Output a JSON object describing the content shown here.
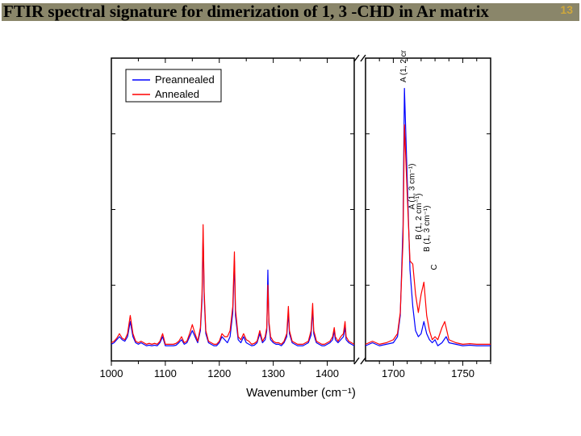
{
  "title_bar": {
    "text": "FTIR spectral signature for dimerization of 1, 3 -CHD in Ar matrix",
    "bg_color": "#8a866a",
    "text_color": "#000000",
    "font_size_pt": 21,
    "font_weight": "bold"
  },
  "page_number": {
    "value": "13",
    "color": "#cfa83c",
    "font_size_pt": 14
  },
  "chart": {
    "type": "line",
    "background_color": "#ffffff",
    "plot_border_color": "#000000",
    "grid": false,
    "x_axis": {
      "label": "Wavenumber (cm⁻¹)",
      "label_fontsize": 15,
      "break": {
        "enabled": true,
        "segments": [
          {
            "domain": [
              1000,
              1450
            ],
            "width_fraction": 0.66
          },
          {
            "domain": [
              1680,
              1770
            ],
            "width_fraction": 0.34
          }
        ]
      },
      "ticks_seg1": [
        1000,
        1100,
        1200,
        1300,
        1400
      ],
      "ticks_seg2": [
        1700,
        1750
      ],
      "tick_fontsize": 13,
      "tick_color": "#000000"
    },
    "y_axis": {
      "label": "",
      "domain": [
        0,
        1.0
      ],
      "ticks": [],
      "tick_fontsize": 13
    },
    "legend": {
      "position": "top-left",
      "border_color": "#000000",
      "items": [
        {
          "label": "Preannealed",
          "color": "#0000ff"
        },
        {
          "label": "Annealed",
          "color": "#ff0000"
        }
      ],
      "font_size": 13
    },
    "series": [
      {
        "name": "Preannealed",
        "color": "#0000ff",
        "line_width": 1.2,
        "segment": 1,
        "points": [
          [
            1000,
            0.055
          ],
          [
            1005,
            0.06
          ],
          [
            1010,
            0.07
          ],
          [
            1015,
            0.08
          ],
          [
            1020,
            0.07
          ],
          [
            1025,
            0.065
          ],
          [
            1030,
            0.08
          ],
          [
            1035,
            0.13
          ],
          [
            1040,
            0.08
          ],
          [
            1045,
            0.06
          ],
          [
            1050,
            0.055
          ],
          [
            1055,
            0.06
          ],
          [
            1060,
            0.055
          ],
          [
            1065,
            0.05
          ],
          [
            1070,
            0.052
          ],
          [
            1075,
            0.05
          ],
          [
            1080,
            0.052
          ],
          [
            1085,
            0.05
          ],
          [
            1090,
            0.06
          ],
          [
            1095,
            0.08
          ],
          [
            1100,
            0.05
          ],
          [
            1105,
            0.05
          ],
          [
            1110,
            0.05
          ],
          [
            1115,
            0.05
          ],
          [
            1120,
            0.052
          ],
          [
            1125,
            0.06
          ],
          [
            1130,
            0.07
          ],
          [
            1135,
            0.055
          ],
          [
            1140,
            0.06
          ],
          [
            1145,
            0.08
          ],
          [
            1150,
            0.1
          ],
          [
            1155,
            0.08
          ],
          [
            1160,
            0.06
          ],
          [
            1165,
            0.1
          ],
          [
            1168,
            0.2
          ],
          [
            1170,
            0.42
          ],
          [
            1172,
            0.21
          ],
          [
            1175,
            0.09
          ],
          [
            1180,
            0.06
          ],
          [
            1185,
            0.055
          ],
          [
            1190,
            0.05
          ],
          [
            1195,
            0.05
          ],
          [
            1200,
            0.06
          ],
          [
            1205,
            0.08
          ],
          [
            1210,
            0.07
          ],
          [
            1215,
            0.06
          ],
          [
            1220,
            0.08
          ],
          [
            1225,
            0.16
          ],
          [
            1228,
            0.33
          ],
          [
            1230,
            0.15
          ],
          [
            1235,
            0.07
          ],
          [
            1240,
            0.06
          ],
          [
            1245,
            0.08
          ],
          [
            1250,
            0.06
          ],
          [
            1255,
            0.055
          ],
          [
            1260,
            0.05
          ],
          [
            1265,
            0.052
          ],
          [
            1270,
            0.06
          ],
          [
            1275,
            0.09
          ],
          [
            1280,
            0.06
          ],
          [
            1285,
            0.07
          ],
          [
            1288,
            0.1
          ],
          [
            1290,
            0.3
          ],
          [
            1292,
            0.12
          ],
          [
            1295,
            0.07
          ],
          [
            1300,
            0.06
          ],
          [
            1305,
            0.055
          ],
          [
            1310,
            0.055
          ],
          [
            1315,
            0.05
          ],
          [
            1320,
            0.06
          ],
          [
            1325,
            0.08
          ],
          [
            1328,
            0.16
          ],
          [
            1330,
            0.09
          ],
          [
            1335,
            0.06
          ],
          [
            1340,
            0.055
          ],
          [
            1345,
            0.05
          ],
          [
            1350,
            0.05
          ],
          [
            1355,
            0.05
          ],
          [
            1360,
            0.055
          ],
          [
            1365,
            0.06
          ],
          [
            1370,
            0.085
          ],
          [
            1373,
            0.17
          ],
          [
            1375,
            0.09
          ],
          [
            1378,
            0.07
          ],
          [
            1380,
            0.06
          ],
          [
            1385,
            0.055
          ],
          [
            1390,
            0.05
          ],
          [
            1395,
            0.05
          ],
          [
            1400,
            0.055
          ],
          [
            1405,
            0.06
          ],
          [
            1410,
            0.07
          ],
          [
            1413,
            0.1
          ],
          [
            1415,
            0.07
          ],
          [
            1420,
            0.06
          ],
          [
            1425,
            0.07
          ],
          [
            1430,
            0.08
          ],
          [
            1433,
            0.11
          ],
          [
            1435,
            0.07
          ],
          [
            1440,
            0.06
          ],
          [
            1445,
            0.055
          ],
          [
            1450,
            0.05
          ]
        ]
      },
      {
        "name": "Preannealed",
        "color": "#0000ff",
        "line_width": 1.2,
        "segment": 2,
        "points": [
          [
            1680,
            0.05
          ],
          [
            1685,
            0.06
          ],
          [
            1690,
            0.05
          ],
          [
            1695,
            0.055
          ],
          [
            1700,
            0.06
          ],
          [
            1703,
            0.08
          ],
          [
            1705,
            0.15
          ],
          [
            1707,
            0.45
          ],
          [
            1708,
            0.9
          ],
          [
            1710,
            0.6
          ],
          [
            1712,
            0.3
          ],
          [
            1714,
            0.18
          ],
          [
            1716,
            0.1
          ],
          [
            1718,
            0.08
          ],
          [
            1720,
            0.09
          ],
          [
            1722,
            0.13
          ],
          [
            1724,
            0.09
          ],
          [
            1726,
            0.07
          ],
          [
            1728,
            0.06
          ],
          [
            1730,
            0.07
          ],
          [
            1732,
            0.05
          ],
          [
            1735,
            0.06
          ],
          [
            1738,
            0.08
          ],
          [
            1740,
            0.06
          ],
          [
            1745,
            0.055
          ],
          [
            1750,
            0.05
          ],
          [
            1755,
            0.052
          ],
          [
            1760,
            0.05
          ],
          [
            1765,
            0.05
          ],
          [
            1770,
            0.05
          ]
        ]
      },
      {
        "name": "Annealed",
        "color": "#ff0000",
        "line_width": 1.2,
        "segment": 1,
        "points": [
          [
            1000,
            0.06
          ],
          [
            1005,
            0.065
          ],
          [
            1010,
            0.075
          ],
          [
            1015,
            0.09
          ],
          [
            1020,
            0.075
          ],
          [
            1025,
            0.07
          ],
          [
            1030,
            0.09
          ],
          [
            1035,
            0.15
          ],
          [
            1040,
            0.09
          ],
          [
            1045,
            0.065
          ],
          [
            1050,
            0.06
          ],
          [
            1055,
            0.065
          ],
          [
            1060,
            0.06
          ],
          [
            1065,
            0.055
          ],
          [
            1070,
            0.058
          ],
          [
            1075,
            0.055
          ],
          [
            1080,
            0.058
          ],
          [
            1085,
            0.055
          ],
          [
            1090,
            0.065
          ],
          [
            1095,
            0.09
          ],
          [
            1100,
            0.055
          ],
          [
            1105,
            0.055
          ],
          [
            1110,
            0.055
          ],
          [
            1115,
            0.055
          ],
          [
            1120,
            0.058
          ],
          [
            1125,
            0.065
          ],
          [
            1130,
            0.08
          ],
          [
            1135,
            0.06
          ],
          [
            1140,
            0.065
          ],
          [
            1145,
            0.09
          ],
          [
            1150,
            0.12
          ],
          [
            1155,
            0.09
          ],
          [
            1160,
            0.065
          ],
          [
            1165,
            0.11
          ],
          [
            1168,
            0.22
          ],
          [
            1170,
            0.45
          ],
          [
            1172,
            0.23
          ],
          [
            1175,
            0.1
          ],
          [
            1180,
            0.065
          ],
          [
            1185,
            0.06
          ],
          [
            1190,
            0.055
          ],
          [
            1195,
            0.055
          ],
          [
            1200,
            0.065
          ],
          [
            1205,
            0.09
          ],
          [
            1210,
            0.08
          ],
          [
            1215,
            0.08
          ],
          [
            1220,
            0.1
          ],
          [
            1225,
            0.18
          ],
          [
            1228,
            0.36
          ],
          [
            1230,
            0.17
          ],
          [
            1235,
            0.08
          ],
          [
            1240,
            0.07
          ],
          [
            1245,
            0.09
          ],
          [
            1250,
            0.07
          ],
          [
            1255,
            0.065
          ],
          [
            1260,
            0.055
          ],
          [
            1265,
            0.058
          ],
          [
            1270,
            0.065
          ],
          [
            1275,
            0.1
          ],
          [
            1280,
            0.065
          ],
          [
            1285,
            0.08
          ],
          [
            1288,
            0.11
          ],
          [
            1290,
            0.25
          ],
          [
            1292,
            0.13
          ],
          [
            1295,
            0.08
          ],
          [
            1300,
            0.065
          ],
          [
            1305,
            0.06
          ],
          [
            1310,
            0.06
          ],
          [
            1315,
            0.055
          ],
          [
            1320,
            0.065
          ],
          [
            1325,
            0.09
          ],
          [
            1328,
            0.18
          ],
          [
            1330,
            0.1
          ],
          [
            1335,
            0.065
          ],
          [
            1340,
            0.06
          ],
          [
            1345,
            0.055
          ],
          [
            1350,
            0.055
          ],
          [
            1355,
            0.055
          ],
          [
            1360,
            0.06
          ],
          [
            1365,
            0.065
          ],
          [
            1370,
            0.1
          ],
          [
            1373,
            0.19
          ],
          [
            1375,
            0.1
          ],
          [
            1378,
            0.08
          ],
          [
            1380,
            0.065
          ],
          [
            1385,
            0.06
          ],
          [
            1390,
            0.055
          ],
          [
            1395,
            0.055
          ],
          [
            1400,
            0.06
          ],
          [
            1405,
            0.065
          ],
          [
            1410,
            0.08
          ],
          [
            1413,
            0.11
          ],
          [
            1415,
            0.08
          ],
          [
            1420,
            0.065
          ],
          [
            1425,
            0.08
          ],
          [
            1430,
            0.09
          ],
          [
            1433,
            0.13
          ],
          [
            1435,
            0.08
          ],
          [
            1440,
            0.065
          ],
          [
            1445,
            0.06
          ],
          [
            1450,
            0.055
          ]
        ]
      },
      {
        "name": "Annealed",
        "color": "#ff0000",
        "line_width": 1.2,
        "segment": 2,
        "points": [
          [
            1680,
            0.055
          ],
          [
            1685,
            0.065
          ],
          [
            1690,
            0.055
          ],
          [
            1695,
            0.06
          ],
          [
            1700,
            0.07
          ],
          [
            1703,
            0.09
          ],
          [
            1705,
            0.16
          ],
          [
            1707,
            0.4
          ],
          [
            1708,
            0.78
          ],
          [
            1710,
            0.55
          ],
          [
            1712,
            0.33
          ],
          [
            1714,
            0.32
          ],
          [
            1716,
            0.22
          ],
          [
            1718,
            0.16
          ],
          [
            1720,
            0.22
          ],
          [
            1722,
            0.26
          ],
          [
            1724,
            0.15
          ],
          [
            1726,
            0.1
          ],
          [
            1728,
            0.07
          ],
          [
            1730,
            0.08
          ],
          [
            1732,
            0.07
          ],
          [
            1735,
            0.11
          ],
          [
            1737,
            0.13
          ],
          [
            1740,
            0.07
          ],
          [
            1745,
            0.06
          ],
          [
            1750,
            0.055
          ],
          [
            1755,
            0.057
          ],
          [
            1760,
            0.055
          ],
          [
            1765,
            0.055
          ],
          [
            1770,
            0.055
          ]
        ]
      }
    ],
    "annotations": [
      {
        "x": 1709,
        "y_top": 0.92,
        "text": "A (1, 2 cm⁻¹)"
      },
      {
        "x": 1715,
        "y_top": 0.5,
        "text": "A (1, 3 cm⁻¹)"
      },
      {
        "x": 1720,
        "y_top": 0.4,
        "text": "B (1, 2 cm⁻¹)"
      },
      {
        "x": 1726,
        "y_top": 0.36,
        "text": "B (1, 3 cm⁻¹)"
      },
      {
        "x": 1731,
        "y_top": 0.3,
        "text": "C"
      }
    ],
    "annotation_fontsize": 10
  }
}
